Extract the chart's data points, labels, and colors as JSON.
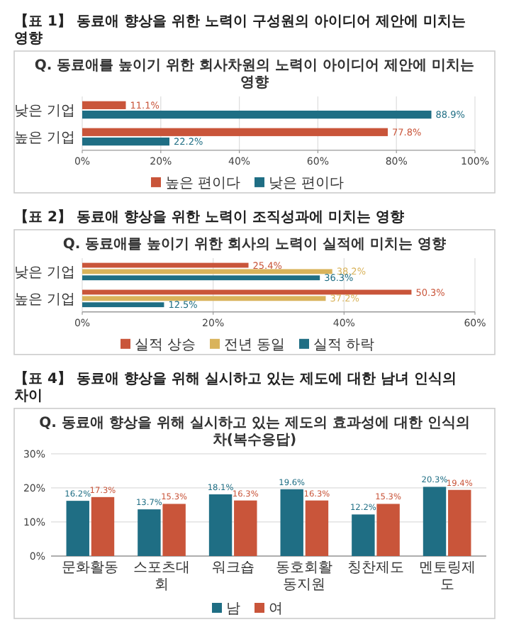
{
  "chart_data": [
    {
      "type": "bar",
      "orientation": "horizontal",
      "title": "【표 1】 동료애 향상을 위한 노력이 구성원의 아이디어 제안에 미치는 영향",
      "subtitle": "Q. 동료애를 높이기 위한 회사차원의 노력이 아이디어 제안에 미치는 영향",
      "categories": [
        "낮은 기업",
        "높은 기업"
      ],
      "series": [
        {
          "name": "높은 편이다",
          "color": "#c9553a",
          "values": [
            11.1,
            77.8
          ],
          "value_labels": [
            "11.1%",
            "77.8%"
          ]
        },
        {
          "name": "낮은 편이다",
          "color": "#1f6e84",
          "values": [
            88.9,
            22.2
          ],
          "value_labels": [
            "88.9%",
            "22.2%"
          ]
        }
      ],
      "xlim": [
        0,
        100
      ],
      "xticks": [
        {
          "value": 0,
          "label": "0%"
        },
        {
          "value": 20,
          "label": "20%"
        },
        {
          "value": 40,
          "label": "40%"
        },
        {
          "value": 60,
          "label": "60%"
        },
        {
          "value": 80,
          "label": "80%"
        },
        {
          "value": 100,
          "label": "100%"
        }
      ],
      "grid": true,
      "legend": "bottom"
    },
    {
      "type": "bar",
      "orientation": "horizontal",
      "title": "【표 2】 동료애 향상을 위한 노력이 조직성과에 미치는 영향",
      "subtitle": "Q. 동료애를 높이기 위한 회사의 노력이 실적에 미치는 영향",
      "categories": [
        "낮은 기업",
        "높은 기업"
      ],
      "series": [
        {
          "name": "실적 상승",
          "color": "#c9553a",
          "values": [
            25.4,
            50.3
          ],
          "value_labels": [
            "25.4%",
            "50.3%"
          ]
        },
        {
          "name": "전년 동일",
          "color": "#d9b35b",
          "values": [
            38.2,
            37.2
          ],
          "value_labels": [
            "38.2%",
            "37.2%"
          ]
        },
        {
          "name": "실적 하락",
          "color": "#1f6e84",
          "values": [
            36.3,
            12.5
          ],
          "value_labels": [
            "36.3%",
            "12.5%"
          ]
        }
      ],
      "xlim": [
        0,
        60
      ],
      "xticks": [
        {
          "value": 0,
          "label": "0%"
        },
        {
          "value": 20,
          "label": "20%"
        },
        {
          "value": 40,
          "label": "40%"
        },
        {
          "value": 60,
          "label": "60%"
        }
      ],
      "grid": true,
      "legend": "bottom"
    },
    {
      "type": "bar",
      "title": "【표 4】 동료애 향상을 위해 실시하고 있는 제도에 대한 남녀 인식의 차이",
      "subtitle": "Q. 동료애 향상을 위해 실시하고 있는 제도의 효과성에 대한 인식의 차(복수응답)",
      "categories": [
        "문화활동",
        "스포츠대회",
        "워크숍",
        "동호회활동지원",
        "칭찬제도",
        "멘토링제도"
      ],
      "series": [
        {
          "name": "남",
          "color": "#1f6e84",
          "values": [
            16.2,
            13.7,
            18.1,
            19.6,
            12.2,
            20.3
          ],
          "value_labels": [
            "16.2%",
            "13.7%",
            "18.1%",
            "19.6%",
            "12.2%",
            "20.3%"
          ]
        },
        {
          "name": "여",
          "color": "#c9553a",
          "values": [
            17.3,
            15.3,
            16.3,
            16.3,
            15.3,
            19.4
          ],
          "value_labels": [
            "17.3%",
            "15.3%",
            "16.3%",
            "16.3%",
            "15.3%",
            "19.4%"
          ]
        }
      ],
      "ylim": [
        0,
        30
      ],
      "yticks": [
        {
          "value": 0,
          "label": "0%"
        },
        {
          "value": 10,
          "label": "10%"
        },
        {
          "value": 20,
          "label": "20%"
        },
        {
          "value": 30,
          "label": "30%"
        }
      ],
      "grid": true,
      "legend": "bottom"
    }
  ]
}
